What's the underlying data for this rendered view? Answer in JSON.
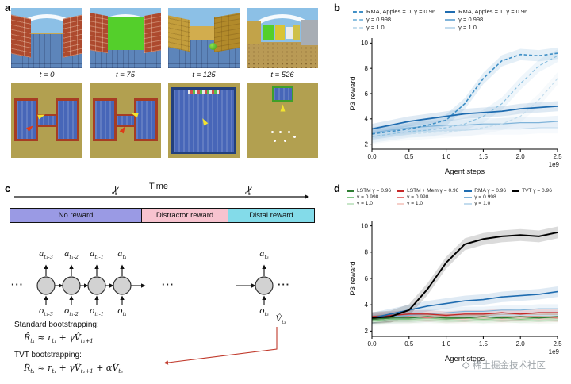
{
  "watermark": {
    "text": "稀土掘金技术社区"
  },
  "icons": {
    "scissors": "✂",
    "ellipsis": "···"
  },
  "panels": {
    "a": {
      "label": "a",
      "frames": [
        {
          "time_label": "t = 0"
        },
        {
          "time_label": "t = 75"
        },
        {
          "time_label": "t = 125"
        },
        {
          "time_label": "t = 526"
        }
      ]
    },
    "b": {
      "label": "b",
      "chart_data": {
        "type": "line",
        "xlabel": "Agent steps",
        "ylabel": "P3 reward",
        "x_offset_label": "1e9",
        "xlim": [
          0,
          2.5
        ],
        "ylim": [
          1.6,
          10.4
        ],
        "yticks": [
          2,
          4,
          6,
          8,
          10
        ],
        "xticks": [
          {
            "v": 0,
            "label": "0.0"
          },
          {
            "v": 0.5,
            "label": "0.5"
          },
          {
            "v": 1,
            "label": "1.0"
          },
          {
            "v": 1.5,
            "label": "1.5"
          },
          {
            "v": 2,
            "label": "2.0"
          },
          {
            "v": 2.5,
            "label": "2.5"
          }
        ],
        "x": [
          0,
          0.25,
          0.5,
          0.75,
          1.0,
          1.25,
          1.5,
          1.75,
          2.0,
          2.25,
          2.5
        ],
        "series": [
          {
            "name": "RMA, Apples = 1, γ = 1.0",
            "color": "#c3dcee",
            "dash": false,
            "width": 1.2,
            "band": 0.45,
            "values": [
              2.7,
              2.9,
              3.0,
              3.0,
              3.1,
              3.1,
              3.2,
              3.2,
              3.2,
              3.3,
              3.3
            ]
          },
          {
            "name": "RMA, Apples = 1, γ = 0.998",
            "color": "#7fb3d9",
            "dash": false,
            "width": 1.2,
            "band": 0.45,
            "values": [
              2.9,
              3.1,
              3.3,
              3.4,
              3.5,
              3.5,
              3.6,
              3.6,
              3.7,
              3.7,
              3.8
            ]
          },
          {
            "name": "RMA, Apples = 0, γ = 1.0",
            "color": "#c4dded",
            "dash": true,
            "width": 1.2,
            "band": 0.5,
            "values": [
              2.5,
              2.7,
              2.8,
              2.9,
              3.0,
              3.1,
              3.3,
              3.6,
              4.2,
              5.5,
              7.2
            ]
          },
          {
            "name": "RMA, Apples = 0, γ = 0.998",
            "color": "#8cc0e0",
            "dash": true,
            "width": 1.2,
            "band": 0.5,
            "values": [
              2.6,
              2.8,
              3.0,
              3.1,
              3.3,
              3.6,
              4.2,
              5.2,
              6.8,
              8.2,
              9.0
            ]
          },
          {
            "name": "RMA, Apples = 0, γ = 0.96",
            "color": "#3f8fc6",
            "dash": true,
            "width": 1.6,
            "band": 0.45,
            "values": [
              2.8,
              3.0,
              3.2,
              3.5,
              3.9,
              5.2,
              7.2,
              8.6,
              9.1,
              9.0,
              9.2
            ]
          },
          {
            "name": "RMA, Apples = 1, γ = 0.96",
            "color": "#1f6cb0",
            "dash": false,
            "width": 1.8,
            "band": 0.4,
            "values": [
              3.2,
              3.5,
              3.8,
              4.0,
              4.2,
              4.4,
              4.5,
              4.6,
              4.8,
              4.9,
              5.0
            ]
          }
        ],
        "legend": {
          "position": "top",
          "columns": [
            {
              "rows": [
                {
                  "label": "RMA, Apples = 0, γ = 0.96",
                  "color": "#3f8fc6",
                  "dash": true
                },
                {
                  "label": "γ = 0.998",
                  "color": "#8cc0e0",
                  "dash": true
                },
                {
                  "label": "γ = 1.0",
                  "color": "#c4dded",
                  "dash": true
                }
              ]
            },
            {
              "rows": [
                {
                  "label": "RMA, Apples = 1, γ = 0.96",
                  "color": "#1f6cb0",
                  "dash": false
                },
                {
                  "label": "γ = 0.998",
                  "color": "#7fb3d9",
                  "dash": false
                },
                {
                  "label": "γ = 1.0",
                  "color": "#c3dcee",
                  "dash": false
                }
              ]
            }
          ]
        }
      }
    },
    "c": {
      "label": "c",
      "time_label": "Time",
      "phases": [
        {
          "label": "No reward",
          "color": "#9a9ae4"
        },
        {
          "label": "Distractor reward",
          "color": "#f7c3cf"
        },
        {
          "label": "Distal reward",
          "color": "#83dbe9"
        }
      ],
      "rnn": {
        "action_labels": [
          {
            "main": "a",
            "sub": "t₁-3"
          },
          {
            "main": "a",
            "sub": "t₁-2"
          },
          {
            "main": "a",
            "sub": "t₁-1"
          },
          {
            "main": "a",
            "sub": "t₁"
          },
          {
            "main": "a",
            "sub": "t₃"
          }
        ],
        "obs_labels": [
          {
            "main": "o",
            "sub": "t₁-3"
          },
          {
            "main": "o",
            "sub": "t₁-2"
          },
          {
            "main": "o",
            "sub": "t₁-1"
          },
          {
            "main": "o",
            "sub": "t₁"
          },
          {
            "main": "o",
            "sub": "t₃"
          }
        ],
        "value_label": {
          "main": "V̂",
          "sub": "t₃"
        }
      },
      "equations": {
        "standard_title": "Standard bootstrapping:",
        "standard": {
          "p1": "R̂",
          "s1": "t₁",
          "p2": " ≈ r",
          "s2": "t₁",
          "p3": " + γV̂",
          "s3": "t₁+1"
        },
        "tvt_title": "TVT bootstrapping:",
        "tvt": {
          "p1": "R̂",
          "s1": "t₁",
          "p2": " ≈ r",
          "s2": "t₁",
          "p3": " + γV̂",
          "s3": "t₁+1",
          "p4": " + αV̂",
          "s4": "t₃"
        }
      }
    },
    "d": {
      "label": "d",
      "chart_data": {
        "type": "line",
        "xlabel": "Agent steps",
        "ylabel": "P3 reward",
        "x_offset_label": "1e9",
        "xlim": [
          0,
          2.5
        ],
        "ylim": [
          1.6,
          10.4
        ],
        "yticks": [
          2,
          4,
          6,
          8,
          10
        ],
        "xticks": [
          {
            "v": 0,
            "label": "0.0"
          },
          {
            "v": 0.5,
            "label": "0.5"
          },
          {
            "v": 1,
            "label": "1.0"
          },
          {
            "v": 1.5,
            "label": "1.5"
          },
          {
            "v": 2,
            "label": "2.0"
          },
          {
            "v": 2.5,
            "label": "2.5"
          }
        ],
        "x": [
          0,
          0.25,
          0.5,
          0.75,
          1.0,
          1.25,
          1.5,
          1.75,
          2.0,
          2.25,
          2.5
        ],
        "series": [
          {
            "name": "LSTM γ = 1.0",
            "color": "#c8e6c9",
            "width": 1.1,
            "band": 0.3,
            "values": [
              2.7,
              2.8,
              2.8,
              2.9,
              2.8,
              2.9,
              2.8,
              2.9,
              2.9,
              2.8,
              2.9
            ]
          },
          {
            "name": "LSTM + Mem γ = 1.0",
            "color": "#f6cfc9",
            "width": 1.1,
            "band": 0.3,
            "values": [
              2.8,
              2.9,
              2.9,
              3.0,
              2.9,
              2.9,
              3.0,
              2.9,
              3.0,
              2.9,
              3.0
            ]
          },
          {
            "name": "RMA γ = 1.0",
            "color": "#c3dcee",
            "width": 1.1,
            "band": 0.35,
            "values": [
              2.8,
              2.9,
              3.0,
              3.0,
              3.1,
              3.1,
              3.1,
              3.2,
              3.2,
              3.2,
              3.2
            ]
          },
          {
            "name": "LSTM γ = 0.998",
            "color": "#81c784",
            "width": 1.1,
            "band": 0.3,
            "values": [
              2.8,
              2.9,
              2.9,
              3.0,
              2.9,
              3.0,
              2.9,
              3.0,
              2.9,
              3.0,
              3.0
            ]
          },
          {
            "name": "LSTM + Mem γ = 0.998",
            "color": "#e57373",
            "width": 1.1,
            "band": 0.3,
            "values": [
              2.9,
              3.0,
              3.1,
              3.0,
              3.1,
              3.0,
              3.1,
              3.0,
              3.1,
              3.1,
              3.0
            ]
          },
          {
            "name": "RMA γ = 0.998",
            "color": "#7fb3d9",
            "width": 1.1,
            "band": 0.35,
            "values": [
              2.9,
              3.1,
              3.2,
              3.3,
              3.4,
              3.5,
              3.5,
              3.6,
              3.6,
              3.7,
              3.7
            ]
          },
          {
            "name": "LSTM γ = 0.96",
            "color": "#2e7d32",
            "width": 1.4,
            "band": 0.3,
            "values": [
              2.9,
              3.0,
              3.0,
              3.1,
              3.0,
              3.0,
              3.1,
              3.0,
              3.1,
              3.0,
              3.1
            ]
          },
          {
            "name": "LSTM + Mem γ = 0.96",
            "color": "#c62828",
            "width": 1.4,
            "band": 0.3,
            "values": [
              3.1,
              3.2,
              3.3,
              3.3,
              3.2,
              3.3,
              3.3,
              3.4,
              3.3,
              3.4,
              3.4
            ]
          },
          {
            "name": "RMA γ = 0.96",
            "color": "#1f6cb0",
            "width": 1.6,
            "band": 0.4,
            "values": [
              3.0,
              3.3,
              3.6,
              3.9,
              4.1,
              4.3,
              4.4,
              4.6,
              4.7,
              4.8,
              5.0
            ]
          },
          {
            "name": "TVT γ = 0.96",
            "color": "#000000",
            "width": 2,
            "band": 0.45,
            "values": [
              3.0,
              3.1,
              3.6,
              5.2,
              7.2,
              8.6,
              9.0,
              9.2,
              9.3,
              9.2,
              9.5
            ]
          }
        ],
        "legend": {
          "position": "top",
          "columns": [
            {
              "rows": [
                {
                  "label": "LSTM γ = 0.96",
                  "color": "#2e7d32"
                },
                {
                  "label": "γ = 0.998",
                  "color": "#81c784"
                },
                {
                  "label": "γ = 1.0",
                  "color": "#c8e6c9"
                }
              ]
            },
            {
              "rows": [
                {
                  "label": "LSTM + Mem γ = 0.96",
                  "color": "#c62828"
                },
                {
                  "label": "γ = 0.998",
                  "color": "#e57373"
                },
                {
                  "label": "γ = 1.0",
                  "color": "#f6cfc9"
                }
              ]
            },
            {
              "rows": [
                {
                  "label": "RMA γ = 0.96",
                  "color": "#1f6cb0"
                },
                {
                  "label": "γ = 0.998",
                  "color": "#7fb3d9"
                },
                {
                  "label": "γ = 1.0",
                  "color": "#c3dcee"
                }
              ]
            },
            {
              "rows": [
                {
                  "label": "TVT γ = 0.96",
                  "color": "#000000"
                }
              ]
            }
          ]
        }
      }
    }
  }
}
